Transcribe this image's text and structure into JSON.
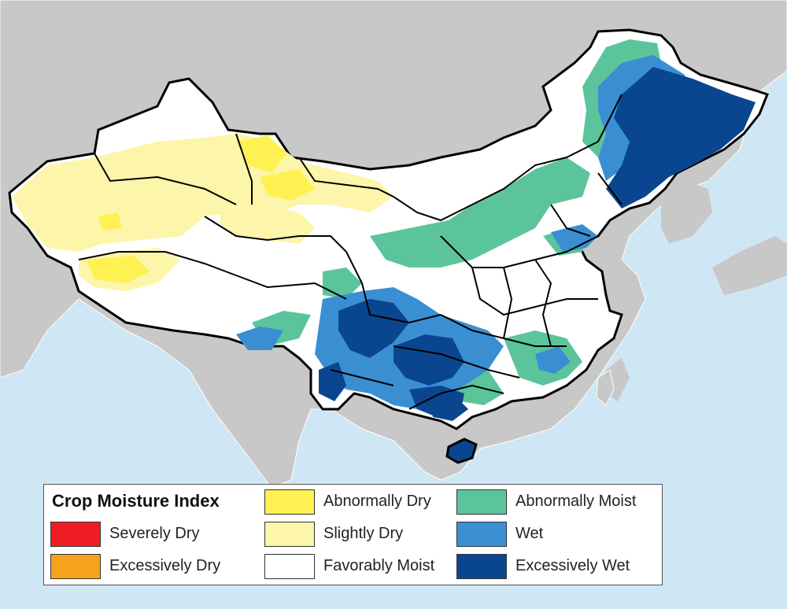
{
  "legend": {
    "title": "Crop Moisture Index",
    "items": [
      {
        "label": "Severely Dry",
        "color": "#ee1c24"
      },
      {
        "label": "Excessively Dry",
        "color": "#f7a21b"
      },
      {
        "label": "Abnormally Dry",
        "color": "#fff152"
      },
      {
        "label": "Slightly Dry",
        "color": "#fdf5a9"
      },
      {
        "label": "Favorably Moist",
        "color": "#ffffff"
      },
      {
        "label": "Abnormally Moist",
        "color": "#5cc49b"
      },
      {
        "label": "Wet",
        "color": "#3a8fd2"
      },
      {
        "label": "Excessively Wet",
        "color": "#0a4690"
      }
    ]
  },
  "colors": {
    "ocean": "#cfe6f4",
    "land": "#c8c8c8",
    "border": "#000000"
  }
}
